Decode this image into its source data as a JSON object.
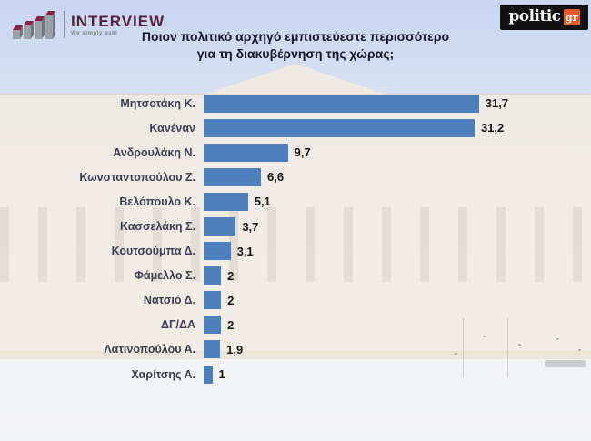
{
  "header": {
    "interview_logo": {
      "name": "INTERVIEW",
      "tagline": "We simply ask!",
      "brand_color": "#571f3e",
      "bar_top_color": "#8c1f42"
    },
    "politic_logo": {
      "name": "politic",
      "badge": "gr",
      "badge_color": "#e85c2b",
      "background_color": "#111111"
    }
  },
  "title": {
    "line1": "Ποιον πολιτικό αρχηγό εμπιστεύεστε περισσότερο",
    "line2": "για τη διακυβέρνηση της χώρας;"
  },
  "chart_data": {
    "type": "bar",
    "orientation": "horizontal",
    "title": "Ποιον πολιτικό αρχηγό εμπιστεύεστε περισσότερο για τη διακυβέρνηση της χώρας;",
    "categories": [
      "Μητσοτάκη Κ.",
      "Κανέναν",
      "Ανδρουλάκη Ν.",
      "Κωνσταντοπούλου Ζ.",
      "Βελόπουλο Κ.",
      "Κασσελάκη Σ.",
      "Κουτσούμπα Δ.",
      "Φάμελλο Σ.",
      "Νατσιό Δ.",
      "ΔΓ/ΔΑ",
      "Λατινοπούλου Α.",
      "Χαρίτσης Α."
    ],
    "values": [
      31.7,
      31.2,
      9.7,
      6.6,
      5.1,
      3.7,
      3.1,
      2,
      2,
      2,
      1.9,
      1
    ],
    "value_labels": [
      "31,7",
      "31,2",
      "9,7",
      "6,6",
      "5,1",
      "3,7",
      "3,1",
      "2",
      "2",
      "2",
      "1,9",
      "1"
    ],
    "bar_color": "#4d80bd",
    "xlim": [
      0,
      33
    ],
    "grid": false,
    "legend": false,
    "data_labels_position": "outside-end"
  }
}
